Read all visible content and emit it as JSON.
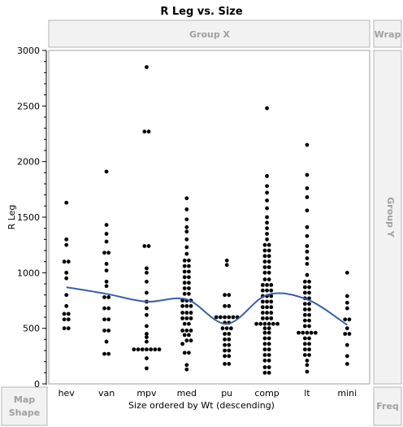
{
  "colors": {
    "points": "#000000",
    "smoother": "#3a5fa8",
    "zone_text": "#a0a0a0"
  },
  "zones": {
    "group_x": "Group X",
    "group_y": "Group Y",
    "wrap": "Wrap",
    "map_shape_line1": "Map",
    "map_shape_line2": "Shape",
    "freq": "Freq"
  },
  "chart_data": {
    "type": "scatter",
    "title": "R Leg vs. Size",
    "xlabel": "Size ordered by Wt (descending)",
    "ylabel": "R Leg",
    "ylim": [
      0,
      3000
    ],
    "yticks": [
      0,
      500,
      1000,
      1500,
      2000,
      2500,
      3000
    ],
    "categories": [
      "hev",
      "van",
      "mpv",
      "med",
      "pu",
      "comp",
      "lt",
      "mini"
    ],
    "grid": false,
    "points": {
      "hev": [
        500,
        500,
        580,
        580,
        630,
        630,
        700,
        800,
        950,
        1000,
        1100,
        1100,
        1250,
        1300,
        1630
      ],
      "van": [
        270,
        270,
        380,
        480,
        480,
        580,
        580,
        680,
        680,
        780,
        780,
        880,
        920,
        1020,
        1080,
        1180,
        1180,
        1280,
        1350,
        1430,
        1910
      ],
      "mpv": [
        140,
        230,
        310,
        310,
        310,
        310,
        310,
        310,
        310,
        380,
        420,
        450,
        520,
        620,
        680,
        740,
        820,
        920,
        1000,
        1040,
        1240,
        1240,
        2270,
        2270,
        2850
      ],
      "med": [
        130,
        170,
        280,
        280,
        360,
        390,
        390,
        440,
        440,
        480,
        480,
        480,
        540,
        540,
        590,
        590,
        590,
        640,
        640,
        640,
        700,
        700,
        700,
        750,
        750,
        750,
        810,
        810,
        860,
        860,
        910,
        910,
        960,
        960,
        1010,
        1010,
        1060,
        1060,
        1110,
        1110,
        1170,
        1230,
        1300,
        1370,
        1410,
        1480,
        1570,
        1670
      ],
      "pu": [
        180,
        180,
        250,
        250,
        300,
        300,
        350,
        350,
        400,
        400,
        450,
        450,
        500,
        500,
        500,
        550,
        550,
        600,
        600,
        600,
        600,
        600,
        600,
        700,
        700,
        800,
        800,
        1070,
        1110
      ],
      "comp": [
        100,
        100,
        150,
        150,
        210,
        210,
        260,
        260,
        310,
        310,
        360,
        360,
        410,
        410,
        460,
        460,
        500,
        500,
        540,
        540,
        540,
        540,
        540,
        540,
        590,
        590,
        590,
        640,
        640,
        640,
        690,
        690,
        690,
        740,
        740,
        740,
        790,
        790,
        790,
        840,
        840,
        840,
        890,
        890,
        890,
        940,
        940,
        1000,
        1000,
        1050,
        1050,
        1100,
        1100,
        1150,
        1150,
        1200,
        1200,
        1250,
        1250,
        1300,
        1350,
        1400,
        1450,
        1500,
        1580,
        1650,
        1720,
        1780,
        1870,
        2480
      ],
      "lt": [
        110,
        170,
        210,
        260,
        260,
        310,
        310,
        360,
        360,
        410,
        410,
        460,
        460,
        460,
        460,
        460,
        520,
        520,
        570,
        570,
        620,
        620,
        670,
        670,
        720,
        720,
        770,
        770,
        820,
        820,
        870,
        870,
        920,
        920,
        980,
        1080,
        1130,
        1190,
        1240,
        1330,
        1410,
        1560,
        1680,
        1760,
        1880,
        2150
      ],
      "mini": [
        180,
        250,
        350,
        450,
        450,
        500,
        580,
        580,
        680,
        730,
        790,
        1000
      ]
    },
    "smoother": [
      {
        "x": "hev",
        "y": 870
      },
      {
        "x": "van",
        "y": 810
      },
      {
        "x": "mpv",
        "y": 740
      },
      {
        "x": "med",
        "y": 760
      },
      {
        "x": "pu",
        "y": 540
      },
      {
        "x": "comp",
        "y": 800
      },
      {
        "x": "lt",
        "y": 760
      },
      {
        "x": "mini",
        "y": 530
      }
    ]
  }
}
